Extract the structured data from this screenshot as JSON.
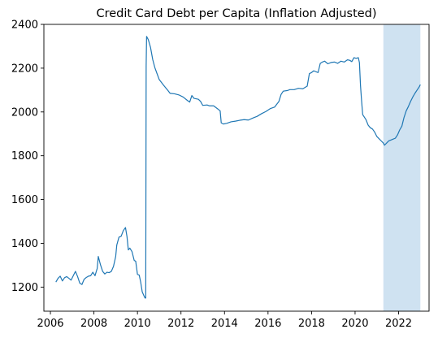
{
  "chart_data": {
    "type": "line",
    "title": "Credit Card Debt per Capita (Inflation Adjusted)",
    "xlabel": "",
    "ylabel": "",
    "xlim": [
      2005.7,
      2023.4
    ],
    "ylim": [
      1090,
      2400
    ],
    "x_ticks": [
      2006,
      2008,
      2010,
      2012,
      2014,
      2016,
      2018,
      2020,
      2022
    ],
    "y_ticks": [
      1200,
      1400,
      1600,
      1800,
      2000,
      2200,
      2400
    ],
    "grid": false,
    "line_color": "#1f77b4",
    "shaded_region": {
      "x_start": 2021.3,
      "x_end": 2023.0,
      "color": "#cfe2f1"
    },
    "series": [
      {
        "points": [
          [
            2006.25,
            1223
          ],
          [
            2006.35,
            1240
          ],
          [
            2006.45,
            1250
          ],
          [
            2006.55,
            1228
          ],
          [
            2006.65,
            1243
          ],
          [
            2006.75,
            1248
          ],
          [
            2006.85,
            1240
          ],
          [
            2006.95,
            1232
          ],
          [
            2007.05,
            1252
          ],
          [
            2007.15,
            1272
          ],
          [
            2007.25,
            1248
          ],
          [
            2007.35,
            1218
          ],
          [
            2007.45,
            1212
          ],
          [
            2007.55,
            1236
          ],
          [
            2007.65,
            1244
          ],
          [
            2007.75,
            1250
          ],
          [
            2007.85,
            1252
          ],
          [
            2007.95,
            1268
          ],
          [
            2008.05,
            1252
          ],
          [
            2008.15,
            1285
          ],
          [
            2008.2,
            1340
          ],
          [
            2008.3,
            1302
          ],
          [
            2008.4,
            1272
          ],
          [
            2008.5,
            1260
          ],
          [
            2008.6,
            1268
          ],
          [
            2008.7,
            1266
          ],
          [
            2008.8,
            1272
          ],
          [
            2008.9,
            1295
          ],
          [
            2009.0,
            1340
          ],
          [
            2009.05,
            1392
          ],
          [
            2009.15,
            1428
          ],
          [
            2009.25,
            1432
          ],
          [
            2009.35,
            1458
          ],
          [
            2009.45,
            1472
          ],
          [
            2009.52,
            1430
          ],
          [
            2009.58,
            1370
          ],
          [
            2009.65,
            1378
          ],
          [
            2009.75,
            1362
          ],
          [
            2009.85,
            1322
          ],
          [
            2009.92,
            1318
          ],
          [
            2010.0,
            1258
          ],
          [
            2010.08,
            1255
          ],
          [
            2010.15,
            1222
          ],
          [
            2010.22,
            1178
          ],
          [
            2010.3,
            1160
          ],
          [
            2010.35,
            1150
          ],
          [
            2010.38,
            1150
          ],
          [
            2010.4,
            2210
          ],
          [
            2010.42,
            2345
          ],
          [
            2010.5,
            2330
          ],
          [
            2010.6,
            2295
          ],
          [
            2010.7,
            2240
          ],
          [
            2010.8,
            2202
          ],
          [
            2010.9,
            2175
          ],
          [
            2011.0,
            2148
          ],
          [
            2011.2,
            2122
          ],
          [
            2011.4,
            2098
          ],
          [
            2011.5,
            2085
          ],
          [
            2011.7,
            2083
          ],
          [
            2011.9,
            2078
          ],
          [
            2012.1,
            2068
          ],
          [
            2012.3,
            2052
          ],
          [
            2012.4,
            2045
          ],
          [
            2012.5,
            2075
          ],
          [
            2012.6,
            2062
          ],
          [
            2012.8,
            2058
          ],
          [
            2012.9,
            2048
          ],
          [
            2013.0,
            2030
          ],
          [
            2013.2,
            2032
          ],
          [
            2013.3,
            2028
          ],
          [
            2013.5,
            2028
          ],
          [
            2013.7,
            2013
          ],
          [
            2013.8,
            2005
          ],
          [
            2013.85,
            1950
          ],
          [
            2013.95,
            1945
          ],
          [
            2014.1,
            1948
          ],
          [
            2014.3,
            1955
          ],
          [
            2014.5,
            1958
          ],
          [
            2014.7,
            1962
          ],
          [
            2014.9,
            1965
          ],
          [
            2015.1,
            1963
          ],
          [
            2015.3,
            1972
          ],
          [
            2015.5,
            1980
          ],
          [
            2015.7,
            1992
          ],
          [
            2015.9,
            2002
          ],
          [
            2016.1,
            2015
          ],
          [
            2016.3,
            2022
          ],
          [
            2016.5,
            2048
          ],
          [
            2016.6,
            2080
          ],
          [
            2016.7,
            2095
          ],
          [
            2016.9,
            2098
          ],
          [
            2017.0,
            2102
          ],
          [
            2017.2,
            2102
          ],
          [
            2017.4,
            2108
          ],
          [
            2017.6,
            2106
          ],
          [
            2017.8,
            2118
          ],
          [
            2017.9,
            2175
          ],
          [
            2018.0,
            2180
          ],
          [
            2018.1,
            2188
          ],
          [
            2018.3,
            2180
          ],
          [
            2018.4,
            2222
          ],
          [
            2018.5,
            2228
          ],
          [
            2018.6,
            2232
          ],
          [
            2018.75,
            2220
          ],
          [
            2018.9,
            2226
          ],
          [
            2019.05,
            2228
          ],
          [
            2019.2,
            2222
          ],
          [
            2019.35,
            2232
          ],
          [
            2019.5,
            2228
          ],
          [
            2019.65,
            2238
          ],
          [
            2019.75,
            2236
          ],
          [
            2019.85,
            2230
          ],
          [
            2019.95,
            2248
          ],
          [
            2020.05,
            2245
          ],
          [
            2020.15,
            2248
          ],
          [
            2020.2,
            2225
          ],
          [
            2020.25,
            2120
          ],
          [
            2020.3,
            2050
          ],
          [
            2020.35,
            1988
          ],
          [
            2020.5,
            1965
          ],
          [
            2020.6,
            1940
          ],
          [
            2020.7,
            1928
          ],
          [
            2020.8,
            1922
          ],
          [
            2020.9,
            1908
          ],
          [
            2021.0,
            1888
          ],
          [
            2021.1,
            1878
          ],
          [
            2021.2,
            1868
          ],
          [
            2021.3,
            1858
          ],
          [
            2021.35,
            1848
          ],
          [
            2021.45,
            1858
          ],
          [
            2021.55,
            1868
          ],
          [
            2021.65,
            1872
          ],
          [
            2021.75,
            1876
          ],
          [
            2021.85,
            1880
          ],
          [
            2021.95,
            1895
          ],
          [
            2022.05,
            1918
          ],
          [
            2022.15,
            1935
          ],
          [
            2022.25,
            1975
          ],
          [
            2022.35,
            2005
          ],
          [
            2022.45,
            2025
          ],
          [
            2022.55,
            2048
          ],
          [
            2022.65,
            2068
          ],
          [
            2022.75,
            2085
          ],
          [
            2022.85,
            2100
          ],
          [
            2022.95,
            2115
          ],
          [
            2023.0,
            2125
          ]
        ]
      }
    ]
  }
}
